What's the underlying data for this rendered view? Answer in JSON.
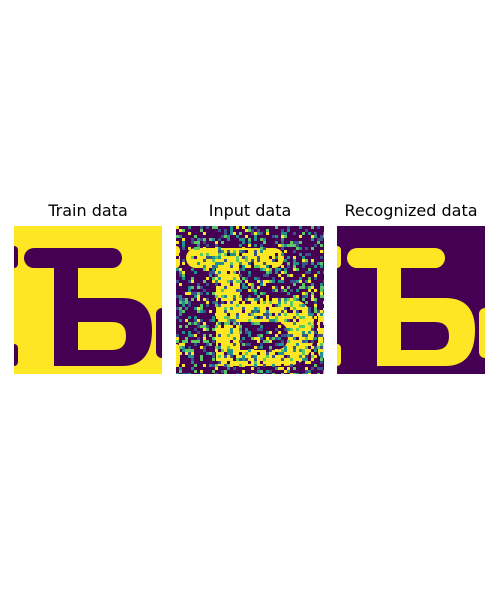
{
  "figure": {
    "panels": [
      {
        "title": "Train data",
        "image_kind": "clean-glyph",
        "glyph_color": "#440154",
        "background_color": "#fde725"
      },
      {
        "title": "Input data",
        "image_kind": "noisy-glyph",
        "glyph_color": "#fde725",
        "background_color": "#440154",
        "noise_colors": [
          "#fde725",
          "#440154",
          "#21918c",
          "#3b528b",
          "#5ec962"
        ]
      },
      {
        "title": "Recognized data",
        "image_kind": "clean-glyph",
        "glyph_color": "#fde725",
        "background_color": "#440154"
      }
    ]
  }
}
